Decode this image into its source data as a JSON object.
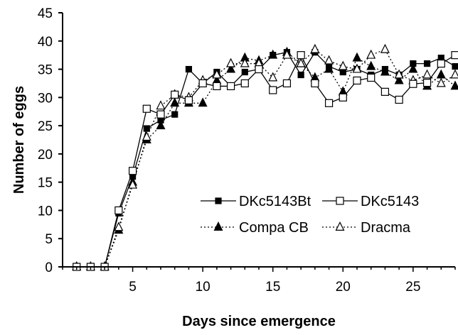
{
  "chart_data": {
    "type": "line",
    "title": "",
    "xlabel": "Days since emergence",
    "ylabel": "Number of eggs",
    "xlim": [
      0,
      28
    ],
    "ylim": [
      0,
      45
    ],
    "xticks": [
      5,
      10,
      15,
      20,
      25
    ],
    "yticks": [
      0,
      5,
      10,
      15,
      20,
      25,
      30,
      35,
      40,
      45
    ],
    "grid": false,
    "legend": {
      "position": "center-right",
      "columns": 2
    },
    "series": [
      {
        "name": "DKc5143Bt",
        "marker": "filled-square",
        "line": "solid",
        "x": [
          1,
          2,
          3,
          4,
          5,
          6,
          7,
          8,
          9,
          10,
          11,
          12,
          13,
          14,
          15,
          16,
          17,
          18,
          19,
          20,
          21,
          22,
          23,
          24,
          25,
          26,
          27,
          28
        ],
        "y": [
          0,
          0,
          0,
          9.5,
          16,
          24.5,
          26,
          27,
          35,
          32.5,
          34.5,
          32,
          34.5,
          35,
          37.5,
          38,
          34,
          38,
          35.5,
          34.5,
          35,
          34,
          35,
          34,
          36,
          36,
          37,
          35.5
        ]
      },
      {
        "name": "DKc5143",
        "marker": "open-square",
        "line": "solid",
        "x": [
          1,
          2,
          3,
          4,
          5,
          6,
          7,
          8,
          9,
          10,
          11,
          12,
          13,
          14,
          15,
          16,
          17,
          18,
          19,
          20,
          21,
          22,
          23,
          24,
          25,
          26,
          27,
          28
        ],
        "y": [
          0,
          0,
          0,
          10,
          17,
          28,
          27,
          30.5,
          29.5,
          32.5,
          32,
          32,
          32.5,
          35,
          31.3,
          32.5,
          37.5,
          32.5,
          29,
          30,
          33,
          33.5,
          31,
          29.6,
          32.4,
          32.6,
          36,
          37.5
        ]
      },
      {
        "name": "Compa CB",
        "marker": "filled-triangle",
        "line": "dotted",
        "x": [
          1,
          2,
          3,
          4,
          5,
          6,
          7,
          8,
          9,
          10,
          11,
          12,
          13,
          14,
          15,
          16,
          17,
          18,
          19,
          20,
          21,
          22,
          23,
          24,
          25,
          26,
          27,
          28
        ],
        "y": [
          0,
          0,
          0,
          6.5,
          15,
          22.5,
          25,
          29,
          29,
          29,
          33,
          35,
          37,
          36.5,
          37.5,
          38,
          36,
          33.5,
          35,
          31,
          37,
          35.5,
          34.5,
          33,
          35,
          32,
          34,
          32
        ]
      },
      {
        "name": "Dracma",
        "marker": "open-triangle",
        "line": "dotted",
        "x": [
          1,
          2,
          3,
          4,
          5,
          6,
          7,
          8,
          9,
          10,
          11,
          12,
          13,
          14,
          15,
          16,
          17,
          18,
          19,
          20,
          21,
          22,
          23,
          24,
          25,
          26,
          27,
          28
        ],
        "y": [
          0,
          0,
          0,
          7,
          14.5,
          23,
          28.5,
          30.5,
          30,
          33,
          34,
          36,
          36,
          36,
          33.5,
          37.5,
          36,
          38.5,
          36.5,
          35.5,
          35,
          37.5,
          38.5,
          34,
          33,
          34,
          32.5,
          34
        ]
      }
    ]
  }
}
